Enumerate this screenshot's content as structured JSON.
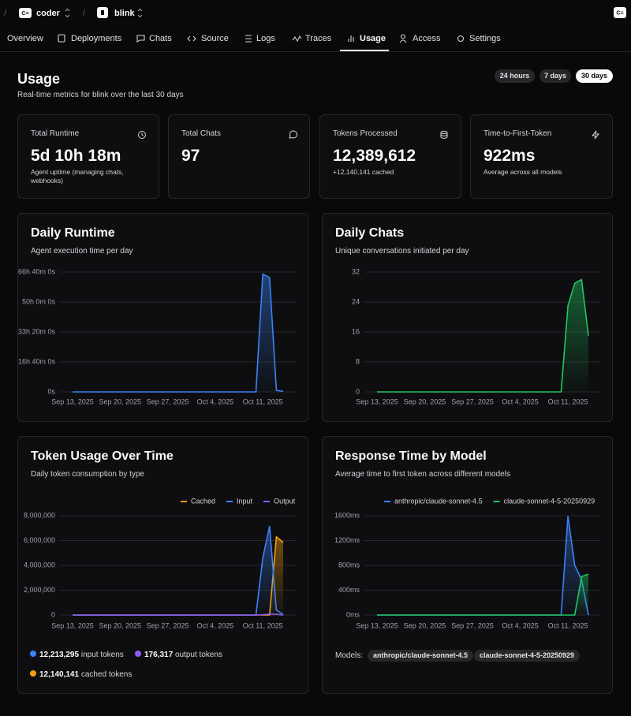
{
  "topbar": {
    "org": "coder",
    "project": "blink"
  },
  "nav": [
    "Overview",
    "Deployments",
    "Chats",
    "Source",
    "Logs",
    "Traces",
    "Usage",
    "Access",
    "Settings"
  ],
  "header": {
    "title": "Usage",
    "subtitle": "Real-time metrics for blink over the last 30 days",
    "ranges": [
      "24 hours",
      "7 days",
      "30 days"
    ]
  },
  "stats": [
    {
      "label": "Total Runtime",
      "value": "5d 10h 18m",
      "note": "Agent uptime (managing chats, webhooks)"
    },
    {
      "label": "Total Chats",
      "value": "97"
    },
    {
      "label": "Tokens Processed",
      "value": "12,389,612",
      "note": "+12,140,141 cached"
    },
    {
      "label": "Time-to-First-Token",
      "value": "922ms",
      "note": "Average across all models"
    }
  ],
  "chart_data": [
    {
      "type": "line",
      "title": "Daily Runtime",
      "subtitle": "Agent execution time per day",
      "color": "#3b82f6",
      "grid": true,
      "x": [
        "2025-09-13",
        "2025-09-14",
        "2025-09-15",
        "2025-09-16",
        "2025-09-17",
        "2025-09-18",
        "2025-09-19",
        "2025-09-20",
        "2025-09-21",
        "2025-09-22",
        "2025-09-23",
        "2025-09-24",
        "2025-09-25",
        "2025-09-26",
        "2025-09-27",
        "2025-09-28",
        "2025-09-29",
        "2025-09-30",
        "2025-10-01",
        "2025-10-02",
        "2025-10-03",
        "2025-10-04",
        "2025-10-05",
        "2025-10-06",
        "2025-10-07",
        "2025-10-08",
        "2025-10-09",
        "2025-10-10",
        "2025-10-11",
        "2025-10-12",
        "2025-10-13",
        "2025-10-14"
      ],
      "values": [
        0,
        0,
        0,
        0,
        0,
        0,
        0,
        0,
        0,
        0,
        0,
        0,
        0,
        0,
        0,
        0,
        0,
        0,
        0,
        0,
        0,
        0,
        0,
        0,
        0,
        0,
        0,
        0,
        236000,
        229000,
        3000,
        1080
      ],
      "xticks": [
        {
          "value": "2025-09-13",
          "label": "Sep 13, 2025"
        },
        {
          "value": "2025-09-20",
          "label": "Sep 20, 2025"
        },
        {
          "value": "2025-09-27",
          "label": "Sep 27, 2025"
        },
        {
          "value": "2025-10-04",
          "label": "Oct 4, 2025"
        },
        {
          "value": "2025-10-11",
          "label": "Oct 11, 2025"
        }
      ],
      "ylim": [
        0,
        240000
      ],
      "yticks": [
        {
          "value": 0,
          "label": "0s"
        },
        {
          "value": 60000,
          "label": "16h 40m 0s"
        },
        {
          "value": 120000,
          "label": "33h 20m 0s"
        },
        {
          "value": 180000,
          "label": "50h 0m 0s"
        },
        {
          "value": 240000,
          "label": "66h 40m 0s"
        }
      ]
    },
    {
      "type": "line",
      "title": "Daily Chats",
      "subtitle": "Unique conversations initiated per day",
      "color": "#22c55e",
      "grid": true,
      "x": [
        "2025-09-13",
        "2025-09-14",
        "2025-09-15",
        "2025-09-16",
        "2025-09-17",
        "2025-09-18",
        "2025-09-19",
        "2025-09-20",
        "2025-09-21",
        "2025-09-22",
        "2025-09-23",
        "2025-09-24",
        "2025-09-25",
        "2025-09-26",
        "2025-09-27",
        "2025-09-28",
        "2025-09-29",
        "2025-09-30",
        "2025-10-01",
        "2025-10-02",
        "2025-10-03",
        "2025-10-04",
        "2025-10-05",
        "2025-10-06",
        "2025-10-07",
        "2025-10-08",
        "2025-10-09",
        "2025-10-10",
        "2025-10-11",
        "2025-10-12",
        "2025-10-13",
        "2025-10-14"
      ],
      "values": [
        0,
        0,
        0,
        0,
        0,
        0,
        0,
        0,
        0,
        0,
        0,
        0,
        0,
        0,
        0,
        0,
        0,
        0,
        0,
        0,
        0,
        0,
        0,
        0,
        0,
        0,
        0,
        0,
        23,
        29,
        30,
        15
      ],
      "xticks": [
        {
          "value": "2025-09-13",
          "label": "Sep 13, 2025"
        },
        {
          "value": "2025-09-20",
          "label": "Sep 20, 2025"
        },
        {
          "value": "2025-09-27",
          "label": "Sep 27, 2025"
        },
        {
          "value": "2025-10-04",
          "label": "Oct 4, 2025"
        },
        {
          "value": "2025-10-11",
          "label": "Oct 11, 2025"
        }
      ],
      "ylim": [
        0,
        32
      ],
      "yticks": [
        0,
        8,
        16,
        24,
        32
      ]
    },
    {
      "type": "line",
      "title": "Token Usage Over Time",
      "subtitle": "Daily token consumption by type",
      "grid": true,
      "legend": "top-right",
      "x": [
        "2025-09-13",
        "2025-09-14",
        "2025-09-15",
        "2025-09-16",
        "2025-09-17",
        "2025-09-18",
        "2025-09-19",
        "2025-09-20",
        "2025-09-21",
        "2025-09-22",
        "2025-09-23",
        "2025-09-24",
        "2025-09-25",
        "2025-09-26",
        "2025-09-27",
        "2025-09-28",
        "2025-09-29",
        "2025-09-30",
        "2025-10-01",
        "2025-10-02",
        "2025-10-03",
        "2025-10-04",
        "2025-10-05",
        "2025-10-06",
        "2025-10-07",
        "2025-10-08",
        "2025-10-09",
        "2025-10-10",
        "2025-10-11",
        "2025-10-12",
        "2025-10-13",
        "2025-10-14"
      ],
      "series": [
        {
          "name": "Cached",
          "color": "#f59e0b",
          "values": [
            0,
            0,
            0,
            0,
            0,
            0,
            0,
            0,
            0,
            0,
            0,
            0,
            0,
            0,
            0,
            0,
            0,
            0,
            0,
            0,
            0,
            0,
            0,
            0,
            0,
            0,
            0,
            0,
            0,
            0,
            6300000,
            5840141
          ]
        },
        {
          "name": "Input",
          "color": "#3b82f6",
          "values": [
            0,
            0,
            0,
            0,
            0,
            0,
            0,
            0,
            0,
            0,
            0,
            0,
            0,
            0,
            0,
            0,
            0,
            0,
            0,
            0,
            0,
            0,
            0,
            0,
            0,
            0,
            0,
            0,
            4600000,
            7150000,
            400000,
            63295
          ]
        },
        {
          "name": "Output",
          "color": "#8b5cf6",
          "values": [
            0,
            0,
            0,
            0,
            0,
            0,
            0,
            0,
            0,
            0,
            0,
            0,
            0,
            0,
            0,
            0,
            0,
            0,
            0,
            0,
            0,
            0,
            0,
            0,
            0,
            0,
            0,
            0,
            30000,
            80000,
            60000,
            6317
          ]
        }
      ],
      "xticks": [
        {
          "value": "2025-09-13",
          "label": "Sep 13, 2025"
        },
        {
          "value": "2025-09-20",
          "label": "Sep 20, 2025"
        },
        {
          "value": "2025-09-27",
          "label": "Sep 27, 2025"
        },
        {
          "value": "2025-10-04",
          "label": "Oct 4, 2025"
        },
        {
          "value": "2025-10-11",
          "label": "Oct 11, 2025"
        }
      ],
      "ylim": [
        0,
        8000000
      ],
      "yticks": [
        0,
        {
          "value": 2000000,
          "label": "2,000,000"
        },
        {
          "value": 4000000,
          "label": "4,000,000"
        },
        {
          "value": 6000000,
          "label": "6,000,000"
        },
        {
          "value": 8000000,
          "label": "8,000,000"
        }
      ]
    },
    {
      "type": "line",
      "title": "Response Time by Model",
      "subtitle": "Average time to first token across different models",
      "grid": true,
      "legend": "top-left",
      "x": [
        "2025-09-13",
        "2025-09-14",
        "2025-09-15",
        "2025-09-16",
        "2025-09-17",
        "2025-09-18",
        "2025-09-19",
        "2025-09-20",
        "2025-09-21",
        "2025-09-22",
        "2025-09-23",
        "2025-09-24",
        "2025-09-25",
        "2025-09-26",
        "2025-09-27",
        "2025-09-28",
        "2025-09-29",
        "2025-09-30",
        "2025-10-01",
        "2025-10-02",
        "2025-10-03",
        "2025-10-04",
        "2025-10-05",
        "2025-10-06",
        "2025-10-07",
        "2025-10-08",
        "2025-10-09",
        "2025-10-10",
        "2025-10-11",
        "2025-10-12",
        "2025-10-13",
        "2025-10-14"
      ],
      "series": [
        {
          "name": "anthropic/claude-sonnet-4.5",
          "color": "#3b82f6",
          "values": [
            0,
            0,
            0,
            0,
            0,
            0,
            0,
            0,
            0,
            0,
            0,
            0,
            0,
            0,
            0,
            0,
            0,
            0,
            0,
            0,
            0,
            0,
            0,
            0,
            0,
            0,
            0,
            0,
            1590,
            800,
            570,
            0
          ]
        },
        {
          "name": "claude-sonnet-4-5-20250929",
          "color": "#22c55e",
          "values": [
            0,
            0,
            0,
            0,
            0,
            0,
            0,
            0,
            0,
            0,
            0,
            0,
            0,
            0,
            0,
            0,
            0,
            0,
            0,
            0,
            0,
            0,
            0,
            0,
            0,
            0,
            0,
            0,
            0,
            0,
            620,
            660
          ]
        }
      ],
      "xticks": [
        {
          "value": "2025-09-13",
          "label": "Sep 13, 2025"
        },
        {
          "value": "2025-09-20",
          "label": "Sep 20, 2025"
        },
        {
          "value": "2025-09-27",
          "label": "Sep 27, 2025"
        },
        {
          "value": "2025-10-04",
          "label": "Oct 4, 2025"
        },
        {
          "value": "2025-10-11",
          "label": "Oct 11, 2025"
        }
      ],
      "ylim": [
        0,
        1600
      ],
      "yticks": [
        {
          "value": 0,
          "label": "0ms"
        },
        {
          "value": 400,
          "label": "400ms"
        },
        {
          "value": 800,
          "label": "800ms"
        },
        {
          "value": 1200,
          "label": "1200ms"
        },
        {
          "value": 1600,
          "label": "1600ms"
        }
      ]
    }
  ],
  "token_totals": [
    {
      "value": "12,213,295",
      "label": "input tokens"
    },
    {
      "value": "176,317",
      "label": "output tokens"
    },
    {
      "value": "12,140,141",
      "label": "cached tokens"
    }
  ],
  "models": {
    "label": "Models:",
    "items": [
      "anthropic/claude-sonnet-4.5",
      "claude-sonnet-4-5-20250929"
    ]
  }
}
